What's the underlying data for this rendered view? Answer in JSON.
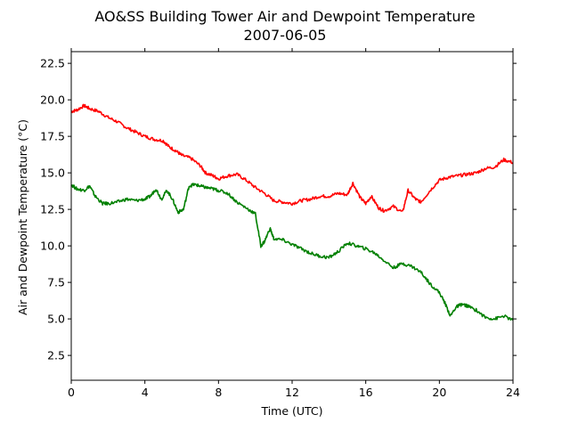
{
  "chart_data": {
    "type": "line",
    "title": "AO&SS Building Tower Air and Dewpoint Temperature",
    "subtitle": "2007-06-05",
    "xlabel": "Time (UTC)",
    "ylabel": "Air and Dewpoint Temperature (°C)",
    "xlim": [
      0,
      24
    ],
    "ylim": [
      0.8,
      23.3
    ],
    "xticks": [
      0,
      4,
      8,
      12,
      16,
      20,
      24
    ],
    "xtick_labels": [
      "0",
      "4",
      "8",
      "12",
      "16",
      "20",
      "24"
    ],
    "yticks": [
      2.5,
      5.0,
      7.5,
      10.0,
      12.5,
      15.0,
      17.5,
      20.0,
      22.5
    ],
    "ytick_labels": [
      "2.5",
      "5.0",
      "7.5",
      "10.0",
      "12.5",
      "15.0",
      "17.5",
      "20.0",
      "22.5"
    ],
    "grid": false,
    "series": [
      {
        "color": "#ff0000",
        "x": [
          0,
          0.3,
          0.7,
          1.0,
          1.5,
          2.0,
          2.5,
          3.0,
          3.5,
          4.0,
          4.5,
          5.0,
          5.3,
          5.7,
          6.0,
          6.5,
          7.0,
          7.3,
          7.7,
          8.0,
          8.5,
          9.0,
          9.5,
          10.0,
          10.5,
          11.0,
          11.5,
          12.0,
          12.5,
          13.0,
          13.5,
          14.0,
          14.5,
          15.0,
          15.3,
          15.7,
          16.0,
          16.3,
          16.7,
          17.0,
          17.5,
          18.0,
          18.3,
          18.7,
          19.0,
          19.5,
          20.0,
          20.5,
          21.0,
          21.5,
          22.0,
          22.5,
          23.0,
          23.5,
          24.0
        ],
        "values": [
          19.2,
          19.3,
          19.6,
          19.4,
          19.2,
          18.8,
          18.5,
          18.1,
          17.8,
          17.5,
          17.3,
          17.2,
          16.8,
          16.5,
          16.2,
          16.0,
          15.5,
          15.0,
          14.8,
          14.6,
          14.8,
          14.9,
          14.5,
          14.0,
          13.6,
          13.1,
          13.0,
          12.9,
          13.1,
          13.2,
          13.4,
          13.4,
          13.6,
          13.5,
          14.3,
          13.3,
          12.9,
          13.4,
          12.6,
          12.4,
          12.7,
          12.3,
          13.8,
          13.2,
          13.0,
          13.8,
          14.5,
          14.7,
          14.8,
          14.9,
          15.0,
          15.3,
          15.4,
          15.9,
          15.7
        ]
      },
      {
        "color": "#008000",
        "x": [
          0,
          0.3,
          0.7,
          1.0,
          1.3,
          1.7,
          2.0,
          2.5,
          3.0,
          3.5,
          4.0,
          4.3,
          4.6,
          4.9,
          5.2,
          5.5,
          5.8,
          6.1,
          6.4,
          6.7,
          7.0,
          7.3,
          7.7,
          8.0,
          8.5,
          9.0,
          9.5,
          10.0,
          10.3,
          10.5,
          10.8,
          11.0,
          11.5,
          12.0,
          12.5,
          13.0,
          13.5,
          14.0,
          14.5,
          15.0,
          15.5,
          16.0,
          16.5,
          17.0,
          17.5,
          18.0,
          18.5,
          19.0,
          19.5,
          20.0,
          20.3,
          20.6,
          20.9,
          21.2,
          21.5,
          22.0,
          22.5,
          23.0,
          23.5,
          24.0
        ],
        "values": [
          14.2,
          13.9,
          13.8,
          14.1,
          13.4,
          12.9,
          12.9,
          13.0,
          13.2,
          13.1,
          13.2,
          13.4,
          13.9,
          13.2,
          13.8,
          13.2,
          12.3,
          12.5,
          14.1,
          14.2,
          14.1,
          14.0,
          13.9,
          13.8,
          13.6,
          13.0,
          12.6,
          12.2,
          10.0,
          10.3,
          11.2,
          10.5,
          10.4,
          10.1,
          9.8,
          9.5,
          9.3,
          9.2,
          9.6,
          10.2,
          10.0,
          9.8,
          9.5,
          9.0,
          8.5,
          8.8,
          8.6,
          8.2,
          7.4,
          6.8,
          6.1,
          5.2,
          5.8,
          6.0,
          5.9,
          5.6,
          5.1,
          5.0,
          5.2,
          4.9
        ]
      }
    ]
  }
}
